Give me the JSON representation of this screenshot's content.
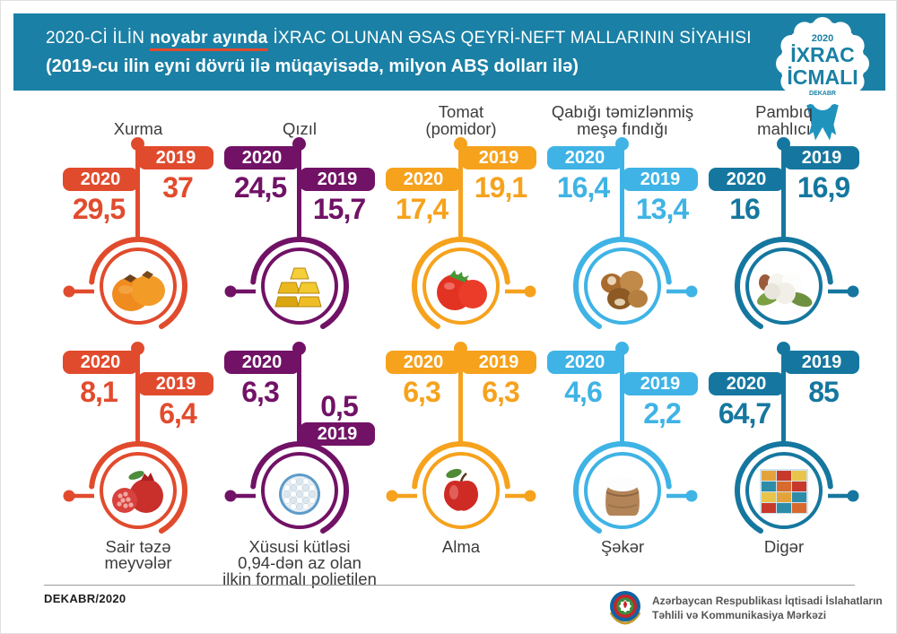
{
  "header": {
    "title_pre": "2020-Cİ İLİN",
    "title_highlight": "noyabr ayında",
    "title_post": "İXRAC OLUNAN ƏSAS QEYRİ-NEFT MALLARININ SİYAHISI",
    "subtitle": "(2019-cu ilin eyni dövrü ilə müqayisədə, milyon ABŞ dolları ilə)",
    "background_color": "#1b80a5",
    "highlight_underline_color": "#e14b2d"
  },
  "badge": {
    "year": "2020",
    "word1": "İXRAC",
    "word2": "İCMALI",
    "month": "DEKABR"
  },
  "products": [
    {
      "title": "Xurma",
      "color": "#e14b2d",
      "label_2020": "2020",
      "label_2019": "2019",
      "value_2020": "29,5",
      "value_2019": "37",
      "layout": "right-high",
      "dot": "left",
      "icon": "persimmon-photo"
    },
    {
      "title": "Qızıl",
      "color": "#711266",
      "label_2020": "2020",
      "label_2019": "2019",
      "value_2020": "24,5",
      "value_2019": "15,7",
      "layout": "left-high",
      "dot": "left",
      "icon": "gold-bars-photo"
    },
    {
      "title": "Tomat\n(pomidor)",
      "color": "#f6a21d",
      "label_2020": "2020",
      "label_2019": "2019",
      "value_2020": "17,4",
      "value_2019": "19,1",
      "layout": "right-high",
      "dot": "right",
      "icon": "tomato-photo"
    },
    {
      "title": "Qabığı təmizlənmiş\nmeşə fındığı",
      "color": "#3fb3e5",
      "label_2020": "2020",
      "label_2019": "2019",
      "value_2020": "16,4",
      "value_2019": "13,4",
      "layout": "left-high",
      "dot": "right",
      "icon": "hazelnut-photo"
    },
    {
      "title": "Pambıq\nmahlıcı",
      "color": "#15779f",
      "label_2020": "2020",
      "label_2019": "2019",
      "value_2020": "16",
      "value_2019": "16,9",
      "layout": "right-high",
      "dot": "right",
      "icon": "cotton-photo"
    },
    {
      "title": "Sair təzə\nmeyvələr",
      "color": "#e14b2d",
      "label_2020": "2020",
      "label_2019": "2019",
      "value_2020": "8,1",
      "value_2019": "6,4",
      "layout": "left-high",
      "dot": "left",
      "icon": "pomegranate-photo"
    },
    {
      "title": "Xüsusi kütləsi\n0,94-dən az olan\nilkin formalı polietilen",
      "color": "#711266",
      "label_2020": "2020",
      "label_2019": "2019",
      "value_2020": "6,3",
      "value_2019": "0,5",
      "layout": "right-verylow",
      "dot": "left",
      "icon": "polyethylene-pellets-photo"
    },
    {
      "title": "Alma",
      "color": "#f6a21d",
      "label_2020": "2020",
      "label_2019": "2019",
      "value_2020": "6,3",
      "value_2019": "6,3",
      "layout": "equal",
      "dot": "both",
      "icon": "apple-photo"
    },
    {
      "title": "Şəkər",
      "color": "#3fb3e5",
      "label_2020": "2020",
      "label_2019": "2019",
      "value_2020": "4,6",
      "value_2019": "2,2",
      "layout": "left-high",
      "dot": "right",
      "icon": "sugar-sack-photo"
    },
    {
      "title": "Digər",
      "color": "#15779f",
      "label_2020": "2020",
      "label_2019": "2019",
      "value_2020": "64,7",
      "value_2019": "85",
      "layout": "right-high",
      "dot": "right",
      "icon": "containers-photo"
    }
  ],
  "footer": {
    "date": "DEKABR/2020",
    "org_line1": "Azərbaycan Respublikası İqtisadi İslahatların",
    "org_line2": "Təhlili və Kommunikasiya Mərkəzi"
  },
  "chart_data": {
    "type": "bar",
    "title": "2020-Cİ İLİN noyabr ayında İXRAC OLUNAN ƏSAS QEYRİ-NEFT MALLARININ SİYAHISI",
    "subtitle": "2019-cu ilin eyni dövrü ilə müqayisədə, milyon ABŞ dolları ilə",
    "unit": "milyon ABŞ dolları",
    "categories": [
      "Xurma",
      "Qızıl",
      "Tomat (pomidor)",
      "Qabığı təmizlənmiş meşə fındığı",
      "Pambıq mahlıcı",
      "Sair təzə meyvələr",
      "Xüsusi kütləsi 0,94-dən az olan ilkin formalı polietilen",
      "Alma",
      "Şəkər",
      "Digər"
    ],
    "series": [
      {
        "name": "2020",
        "values": [
          29.5,
          24.5,
          17.4,
          16.4,
          16,
          8.1,
          6.3,
          6.3,
          4.6,
          64.7
        ]
      },
      {
        "name": "2019",
        "values": [
          37,
          15.7,
          19.1,
          13.4,
          16.9,
          6.4,
          0.5,
          6.3,
          2.2,
          85
        ]
      }
    ],
    "legend_position": "per-item tabs",
    "grid": false
  }
}
